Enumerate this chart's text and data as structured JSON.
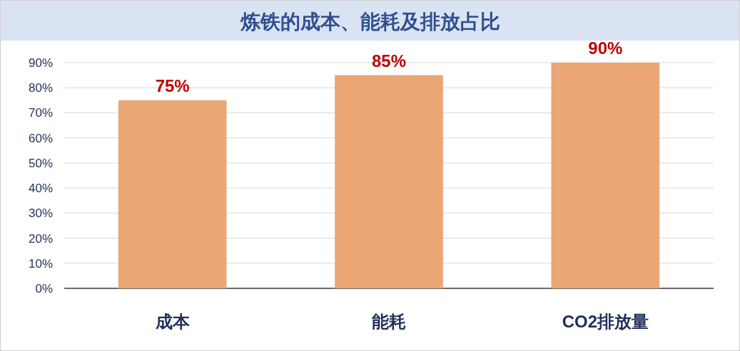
{
  "chart_data": {
    "type": "bar",
    "title": "炼铁的成本、能耗及排放占比",
    "categories": [
      "成本",
      "能耗",
      "CO2排放量"
    ],
    "values": [
      75,
      85,
      90
    ],
    "value_labels": [
      "75%",
      "85%",
      "90%"
    ],
    "color": "#eaa675",
    "ylim": [
      0,
      90
    ],
    "yticks": [
      {
        "value": 0,
        "label": "0%"
      },
      {
        "value": 10,
        "label": "10%"
      },
      {
        "value": 20,
        "label": "20%"
      },
      {
        "value": 30,
        "label": "30%"
      },
      {
        "value": 40,
        "label": "40%"
      },
      {
        "value": 50,
        "label": "50%"
      },
      {
        "value": 60,
        "label": "60%"
      },
      {
        "value": 70,
        "label": "70%"
      },
      {
        "value": 80,
        "label": "80%"
      },
      {
        "value": 90,
        "label": "90%"
      }
    ],
    "grid": "y"
  }
}
